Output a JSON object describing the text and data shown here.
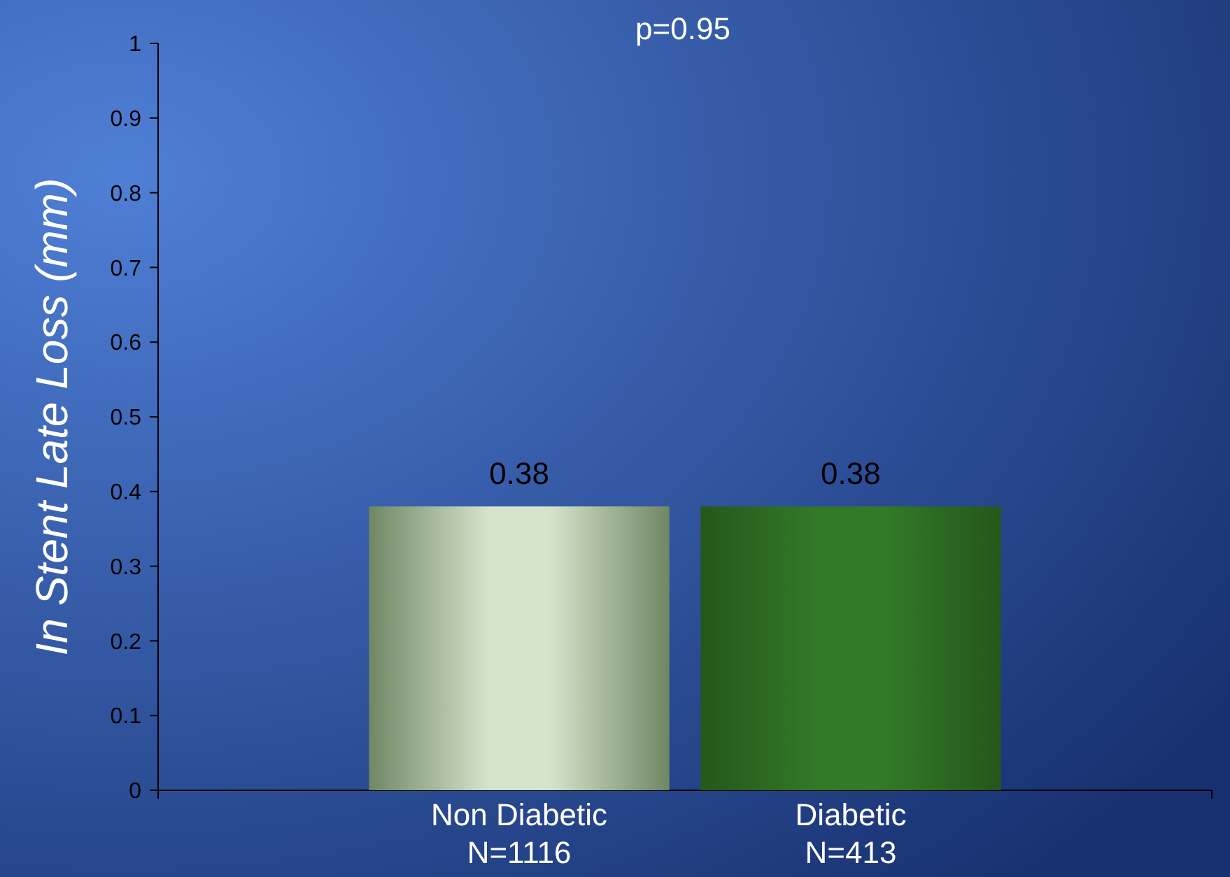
{
  "chart_data": {
    "type": "bar",
    "title": "p=0.95",
    "ylabel": "In Stent Late Loss (mm)",
    "categories": [
      "Non Diabetic\nN=1116",
      "Diabetic\nN=413"
    ],
    "values": [
      0.38,
      0.38
    ],
    "colors": [
      "#d6e4cc",
      "#327a28"
    ],
    "ylim": [
      0,
      1
    ],
    "yticks": [
      0,
      0.1,
      0.2,
      0.3,
      0.4,
      0.5,
      0.6,
      0.7,
      0.8,
      0.9,
      1
    ],
    "data_labels": true
  }
}
